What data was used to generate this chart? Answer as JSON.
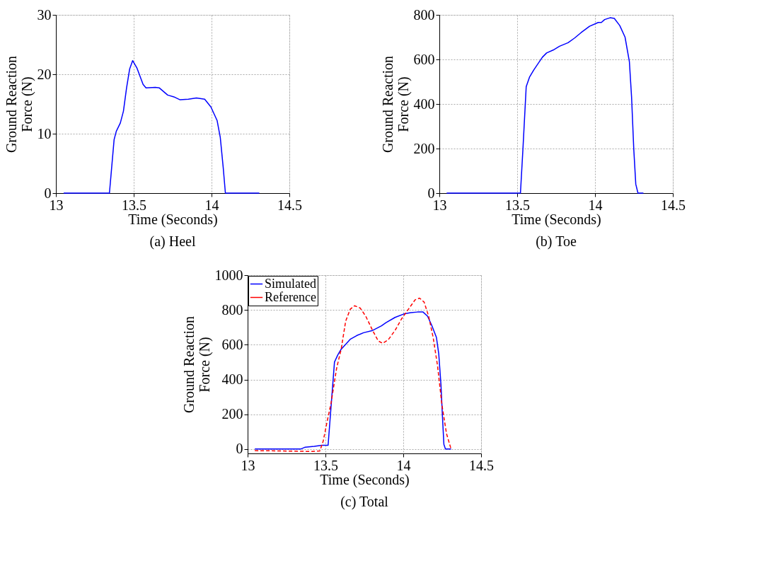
{
  "chart_data": [
    {
      "type": "line",
      "title": "(a) Heel",
      "xlabel": "Time (Seconds)",
      "ylabel": "Ground Reaction Force (N)",
      "xlim": [
        13,
        14.5
      ],
      "xticks": [
        13,
        13.5,
        14,
        14.5
      ],
      "ylim": [
        0,
        30
      ],
      "yticks": [
        0,
        10,
        20,
        30
      ],
      "grid": true,
      "legend": false,
      "series": [
        {
          "color": "#0000ff",
          "line_style": "solid",
          "x": [
            13.05,
            13.344,
            13.374,
            13.388,
            13.414,
            13.434,
            13.454,
            13.474,
            13.493,
            13.52,
            13.56,
            13.579,
            13.639,
            13.665,
            13.718,
            13.758,
            13.798,
            13.851,
            13.903,
            13.956,
            13.996,
            14.036,
            14.056,
            14.075,
            14.089,
            14.307
          ],
          "values": [
            0,
            0,
            9.0,
            10.4,
            11.8,
            13.8,
            17.7,
            20.9,
            22.3,
            21.1,
            18.3,
            17.7,
            17.8,
            17.7,
            16.5,
            16.2,
            15.7,
            15.8,
            16.0,
            15.8,
            14.5,
            12.2,
            9.4,
            4.3,
            0,
            0
          ]
        }
      ]
    },
    {
      "type": "line",
      "title": "(b) Toe",
      "xlabel": "Time (Seconds)",
      "ylabel": "Ground Reaction Force (N)",
      "xlim": [
        13,
        14.5
      ],
      "xticks": [
        13,
        13.5,
        14,
        14.5
      ],
      "ylim": [
        0,
        800
      ],
      "yticks": [
        0,
        200,
        400,
        600,
        800
      ],
      "grid": true,
      "legend": false,
      "series": [
        {
          "color": "#0000ff",
          "line_style": "solid",
          "x": [
            13.047,
            13.521,
            13.537,
            13.558,
            13.579,
            13.606,
            13.662,
            13.689,
            13.731,
            13.772,
            13.827,
            13.869,
            13.91,
            13.965,
            14.021,
            14.041,
            14.062,
            14.097,
            14.124,
            14.159,
            14.193,
            14.221,
            14.235,
            14.249,
            14.262,
            14.276,
            14.311
          ],
          "values": [
            0,
            0,
            198,
            478,
            520,
            552,
            610,
            629,
            642,
            659,
            675,
            696,
            720,
            749,
            766,
            766,
            779,
            787,
            784,
            752,
            700,
            589,
            430,
            198,
            40,
            0,
            0
          ]
        }
      ]
    },
    {
      "type": "line",
      "title": "(c) Total",
      "xlabel": "Time (Seconds)",
      "ylabel": "Ground Reaction Force (N)",
      "xlim": [
        13,
        14.5
      ],
      "xticks": [
        13,
        13.5,
        14,
        14.5
      ],
      "ylim": [
        -25,
        1000
      ],
      "yticks": [
        0,
        200,
        400,
        600,
        800,
        1000
      ],
      "grid": true,
      "legend": "top left",
      "series": [
        {
          "name": "Simulated",
          "color": "#0000ff",
          "line_style": "solid",
          "x": [
            13.046,
            13.341,
            13.37,
            13.428,
            13.478,
            13.517,
            13.558,
            13.579,
            13.601,
            13.659,
            13.702,
            13.745,
            13.803,
            13.86,
            13.889,
            13.947,
            14.004,
            14.048,
            14.091,
            14.127,
            14.156,
            14.184,
            14.213,
            14.228,
            14.242,
            14.252,
            14.261,
            14.271,
            14.307
          ],
          "values": [
            0,
            0,
            11,
            16,
            22,
            22,
            500,
            541,
            574,
            631,
            653,
            669,
            682,
            709,
            727,
            757,
            777,
            784,
            788,
            788,
            764,
            709,
            642,
            547,
            372,
            182,
            27,
            0,
            0
          ]
        },
        {
          "name": "Reference",
          "color": "#ff0000",
          "line_style": "dashed",
          "x": [
            13.046,
            13.226,
            13.414,
            13.464,
            13.486,
            13.507,
            13.536,
            13.572,
            13.601,
            13.63,
            13.659,
            13.687,
            13.723,
            13.759,
            13.803,
            13.839,
            13.867,
            13.903,
            13.947,
            13.99,
            14.033,
            14.076,
            14.105,
            14.134,
            14.163,
            14.192,
            14.22,
            14.249,
            14.278,
            14.307
          ],
          "values": [
            -9,
            -11,
            -14,
            -11,
            47,
            142,
            264,
            466,
            574,
            736,
            804,
            824,
            811,
            764,
            682,
            622,
            608,
            628,
            682,
            750,
            804,
            858,
            868,
            845,
            764,
            642,
            480,
            250,
            88,
            0
          ]
        }
      ]
    }
  ]
}
